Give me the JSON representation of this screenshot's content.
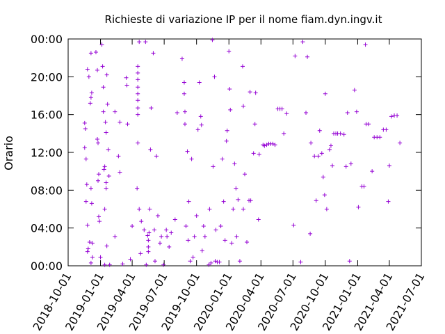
{
  "chart_data": {
    "type": "scatter",
    "title": "Richieste di variazione IP per il nome fiam.dyn.ingv.it",
    "y_label": "Orario",
    "color": "#9400d3",
    "xlim": [
      "2018-10-01",
      "2021-07-01"
    ],
    "xticks": [
      "2018-10-01",
      "2019-01-01",
      "2019-04-01",
      "2019-07-01",
      "2019-10-01",
      "2020-01-01",
      "2020-04-01",
      "2020-07-01",
      "2020-10-01",
      "2021-01-01",
      "2021-04-01",
      "2021-07-01"
    ],
    "ylim": [
      0,
      24
    ],
    "yticks": [
      {
        "value": 0,
        "label": "00:00"
      },
      {
        "value": 4,
        "label": "04:00"
      },
      {
        "value": 8,
        "label": "08:00"
      },
      {
        "value": 12,
        "label": "12:00"
      },
      {
        "value": 16,
        "label": "16:00"
      },
      {
        "value": 20,
        "label": "20:00"
      },
      {
        "value": 24,
        "label": "00:00"
      }
    ],
    "grid": false,
    "x": [
      "2018-11-17",
      "2018-11-19",
      "2018-11-17",
      "2018-11-21",
      "2018-11-23",
      "2018-11-21",
      "2018-11-25",
      "2018-11-25",
      "2018-11-27",
      "2018-11-29",
      "2018-11-25",
      "2018-12-01",
      "2018-12-03",
      "2018-12-05",
      "2018-12-05",
      "2018-12-07",
      "2018-12-05",
      "2018-12-07",
      "2018-12-05",
      "2018-12-09",
      "2018-12-09",
      "2018-12-19",
      "2018-12-23",
      "2018-12-23",
      "2018-12-25",
      "2018-12-25",
      "2018-12-27",
      "2018-12-27",
      "2018-12-29",
      "2019-01-01",
      "2019-01-05",
      "2019-01-07",
      "2019-01-09",
      "2019-01-09",
      "2019-01-11",
      "2019-01-13",
      "2019-01-15",
      "2019-01-17",
      "2019-01-17",
      "2019-01-19",
      "2019-01-19",
      "2019-01-21",
      "2019-01-23",
      "2019-01-25",
      "2019-01-27",
      "2019-01-13",
      "2019-01-13",
      "2019-01-17",
      "2019-02-11",
      "2019-02-11",
      "2019-02-21",
      "2019-02-25",
      "2019-02-25",
      "2019-03-05",
      "2019-03-15",
      "2019-03-17",
      "2019-03-19",
      "2019-03-27",
      "2019-04-01",
      "2019-04-17",
      "2019-04-17",
      "2019-04-17",
      "2019-04-17",
      "2019-04-17",
      "2019-04-17",
      "2019-04-17",
      "2019-04-17",
      "2019-04-15",
      "2019-04-17",
      "2019-04-21",
      "2019-04-21",
      "2019-04-25",
      "2019-04-27",
      "2019-05-05",
      "2019-05-09",
      "2019-05-11",
      "2019-05-15",
      "2019-05-17",
      "2019-05-17",
      "2019-05-19",
      "2019-05-17",
      "2019-05-21",
      "2019-05-23",
      "2019-05-25",
      "2019-05-31",
      "2019-06-03",
      "2019-06-05",
      "2019-06-09",
      "2019-06-13",
      "2019-06-19",
      "2019-06-23",
      "2019-06-29",
      "2019-07-07",
      "2019-07-09",
      "2019-07-15",
      "2019-07-21",
      "2019-08-01",
      "2019-08-07",
      "2019-08-21",
      "2019-08-27",
      "2019-08-27",
      "2019-08-29",
      "2019-08-29",
      "2019-09-01",
      "2019-09-05",
      "2019-09-07",
      "2019-09-09",
      "2019-09-13",
      "2019-09-17",
      "2019-09-21",
      "2019-09-25",
      "2019-10-01",
      "2019-10-05",
      "2019-10-09",
      "2019-10-13",
      "2019-10-15",
      "2019-10-17",
      "2019-10-21",
      "2019-10-25",
      "2019-11-05",
      "2019-11-07",
      "2019-11-11",
      "2019-11-15",
      "2019-11-17",
      "2019-11-21",
      "2019-11-23",
      "2019-11-25",
      "2019-11-29",
      "2019-12-05",
      "2019-12-09",
      "2019-12-13",
      "2019-12-17",
      "2019-12-21",
      "2019-12-25",
      "2019-12-27",
      "2020-01-01",
      "2020-01-03",
      "2020-01-05",
      "2020-01-09",
      "2020-01-13",
      "2020-01-17",
      "2020-01-21",
      "2020-01-23",
      "2020-01-27",
      "2020-02-01",
      "2020-02-09",
      "2020-02-11",
      "2020-02-11",
      "2020-02-15",
      "2020-02-21",
      "2020-02-27",
      "2020-03-01",
      "2020-03-03",
      "2020-03-11",
      "2020-03-15",
      "2020-03-17",
      "2020-03-25",
      "2020-03-27",
      "2020-04-07",
      "2020-04-11",
      "2020-04-17",
      "2020-04-23",
      "2020-04-29",
      "2020-05-05",
      "2020-05-11",
      "2020-05-19",
      "2020-05-25",
      "2020-05-31",
      "2020-06-05",
      "2020-06-13",
      "2020-07-03",
      "2020-07-07",
      "2020-07-23",
      "2020-07-29",
      "2020-08-07",
      "2020-08-11",
      "2020-08-19",
      "2020-08-21",
      "2020-08-31",
      "2020-09-05",
      "2020-09-11",
      "2020-09-15",
      "2020-09-21",
      "2020-09-25",
      "2020-09-29",
      "2020-10-01",
      "2020-10-05",
      "2020-10-13",
      "2020-10-17",
      "2020-10-21",
      "2020-10-25",
      "2020-10-31",
      "2020-11-05",
      "2020-11-13",
      "2020-11-23",
      "2020-11-29",
      "2020-12-03",
      "2020-12-09",
      "2020-12-13",
      "2020-12-23",
      "2020-12-29",
      "2021-01-03",
      "2021-01-13",
      "2021-01-19",
      "2021-01-25",
      "2021-02-01",
      "2021-02-11",
      "2021-02-17",
      "2021-02-25",
      "2021-03-05",
      "2021-03-15",
      "2021-03-23",
      "2021-03-29",
      "2021-04-01",
      "2021-04-07",
      "2021-04-15",
      "2021-04-23",
      "2021-05-01",
      "2021-01-23"
    ],
    "values": [
      15.1,
      14.5,
      12.5,
      11.3,
      8.6,
      6.8,
      4.3,
      1.5,
      1.8,
      20.0,
      20.8,
      2.5,
      17.2,
      17.8,
      22.5,
      18.3,
      8.2,
      6.6,
      0.3,
      0.9,
      2.4,
      22.6,
      20.7,
      13.4,
      13.0,
      9.0,
      9.7,
      5.2,
      4.7,
      0.9,
      23.4,
      21.1,
      18.9,
      16.3,
      10.2,
      10.5,
      15.2,
      14.1,
      8.2,
      20.2,
      2.1,
      17.1,
      12.3,
      9.5,
      0.1,
      0.1,
      6.0,
      8.8,
      16.3,
      3.1,
      11.6,
      9.9,
      15.2,
      0.2,
      19.9,
      19.1,
      15.0,
      0.7,
      4.2,
      21.1,
      20.4,
      19.7,
      18.9,
      18.2,
      17.5,
      16.7,
      16.0,
      8.2,
      13.0,
      23.7,
      6.0,
      1.3,
      4.7,
      3.8,
      23.7,
      0.1,
      3.2,
      2.7,
      2.0,
      3.5,
      1.5,
      6.0,
      12.3,
      16.7,
      22.5,
      3.8,
      0.5,
      11.6,
      5.3,
      2.4,
      3.1,
      0.1,
      3.8,
      3.1,
      2.0,
      3.5,
      4.9,
      16.2,
      21.9,
      19.4,
      18.2,
      16.3,
      15.0,
      4.2,
      12.1,
      2.7,
      6.8,
      0.5,
      11.3,
      0.9,
      3.1,
      5.3,
      14.4,
      19.4,
      15.8,
      14.9,
      1.6,
      4.2,
      3.1,
      0.1,
      6.0,
      0.3,
      23.9,
      10.5,
      20.0,
      0.5,
      3.8,
      0.4,
      0.4,
      4.2,
      11.3,
      6.8,
      2.7,
      13.2,
      14.3,
      22.7,
      18.7,
      16.5,
      2.4,
      6.0,
      10.8,
      8.2,
      3.1,
      7.0,
      0.5,
      21.1,
      16.9,
      6.0,
      9.7,
      2.5,
      6.9,
      18.4,
      6.9,
      11.9,
      15.0,
      18.3,
      4.9,
      11.8,
      12.8,
      12.7,
      12.8,
      12.9,
      12.9,
      12.9,
      12.8,
      16.6,
      16.6,
      16.6,
      14.0,
      16.1,
      4.3,
      22.2,
      0.4,
      23.7,
      16.2,
      22.1,
      3.4,
      13.0,
      11.6,
      6.9,
      11.6,
      14.3,
      11.9,
      9.4,
      7.5,
      18.2,
      6.0,
      12.3,
      12.7,
      10.6,
      14.0,
      14.0,
      14.0,
      14.0,
      13.9,
      10.5,
      16.2,
      0.5,
      10.8,
      18.6,
      16.3,
      6.2,
      8.4,
      8.4,
      15.0,
      15.0,
      10.0,
      13.6,
      13.6,
      13.6,
      14.4,
      14.4,
      6.8,
      10.6,
      15.8,
      15.9,
      15.9,
      13.0,
      23.4
    ]
  }
}
